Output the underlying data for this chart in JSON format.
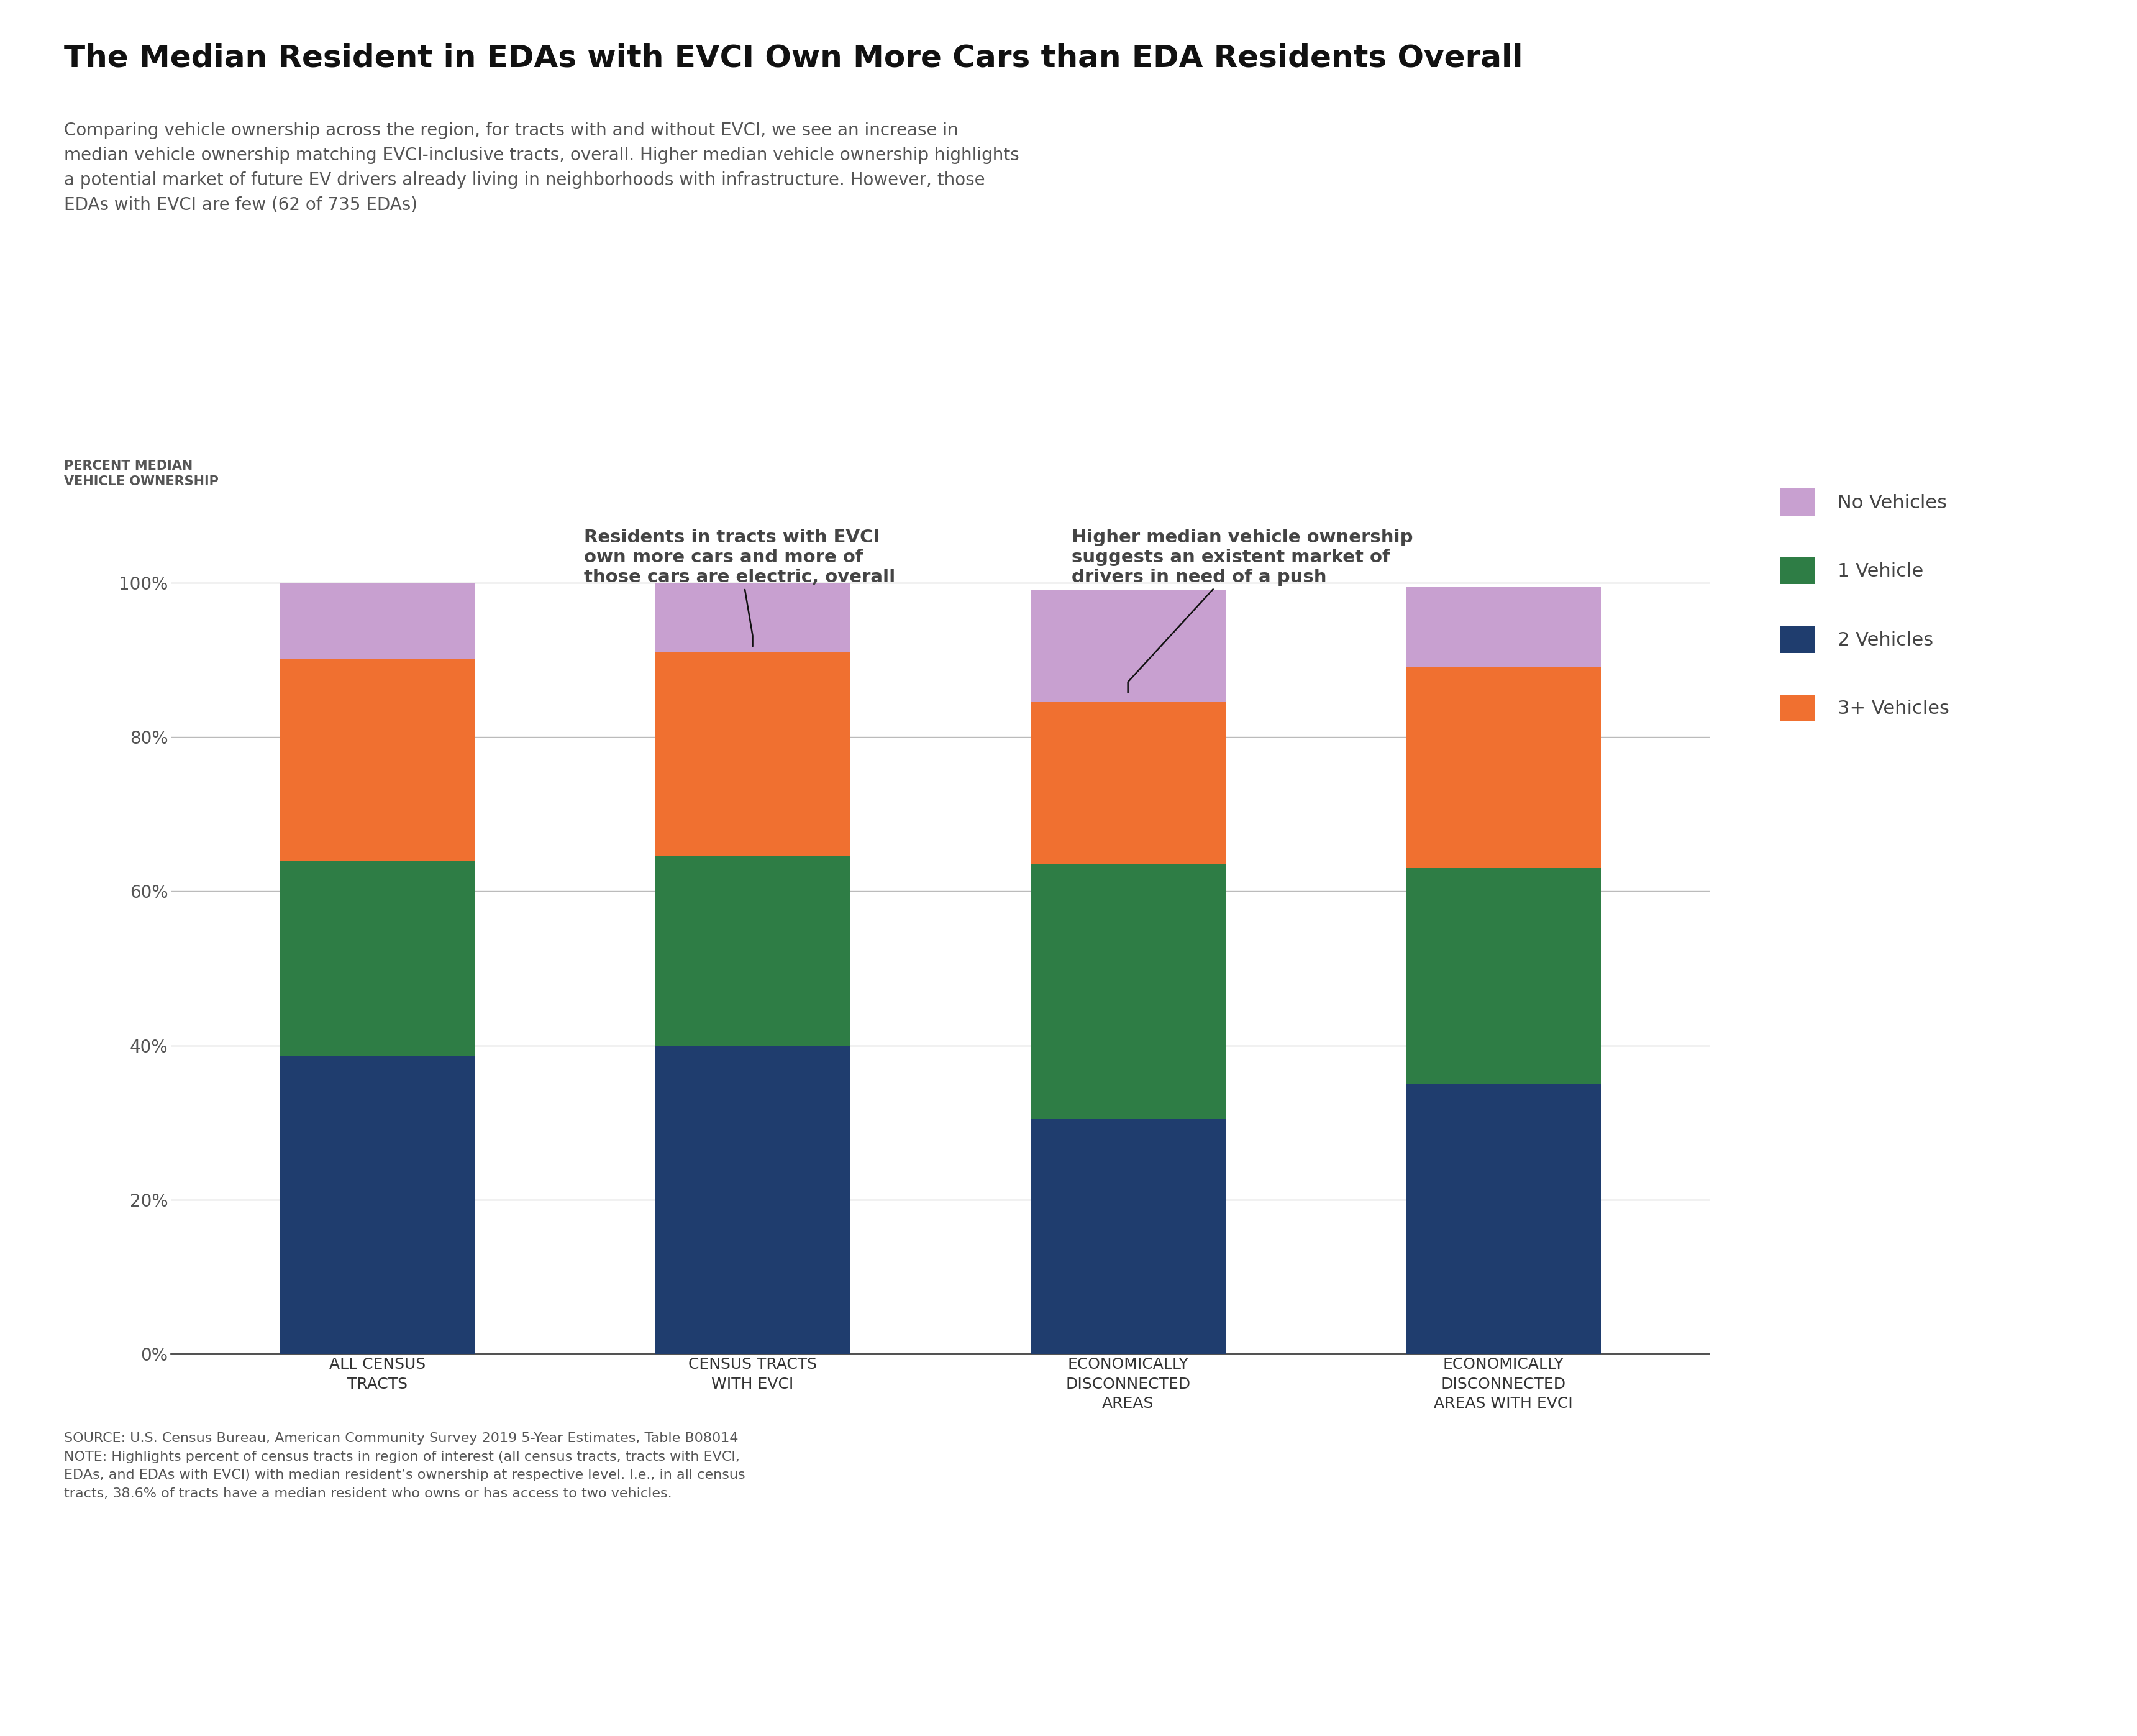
{
  "title": "The Median Resident in EDAs with EVCI Own More Cars than EDA Residents Overall",
  "subtitle": "Comparing vehicle ownership across the region, for tracts with and without EVCI, we see an increase in\nmedian vehicle ownership matching EVCI-inclusive tracts, overall. Higher median vehicle ownership highlights\na potential market of future EV drivers already living in neighborhoods with infrastructure. However, those\nEDAs with EVCI are few (62 of 735 EDAs)",
  "ylabel": "PERCENT MEDIAN\nVEHICLE OWNERSHIP",
  "categories": [
    "ALL CENSUS\nTRACTS",
    "CENSUS TRACTS\nWITH EVCI",
    "ECONOMICALLY\nDISCONNECTED\nAREAS",
    "ECONOMICALLY\nDISCONNECTED\nAREAS WITH EVCI"
  ],
  "data": {
    "2_vehicles": [
      38.6,
      40.0,
      30.5,
      35.0
    ],
    "1_vehicle": [
      25.4,
      24.5,
      33.0,
      28.0
    ],
    "3plus_vehicles": [
      26.1,
      26.5,
      21.0,
      26.0
    ],
    "no_vehicles": [
      9.9,
      9.0,
      14.5,
      10.5
    ]
  },
  "colors": {
    "2_vehicles": "#1f3d6e",
    "1_vehicle": "#2e7d45",
    "3plus_vehicles": "#f07030",
    "no_vehicles": "#c8a0d0"
  },
  "legend_labels": [
    "No Vehicles",
    "1 Vehicle",
    "2 Vehicles",
    "3+ Vehicles"
  ],
  "legend_colors": [
    "#c8a0d0",
    "#2e7d45",
    "#1f3d6e",
    "#f07030"
  ],
  "annotation1_text": "Residents in tracts with EVCI\nown more cars and more of\nthose cars are electric, overall",
  "annotation2_text": "Higher median vehicle ownership\nsuggests an existent market of\ndrivers in need of a push",
  "source_text": "SOURCE: U.S. Census Bureau, American Community Survey 2019 5-Year Estimates, Table B08014\nNOTE: Highlights percent of census tracts in region of interest (all census tracts, tracts with EVCI,\nEDAs, and EDAs with EVCI) with median resident’s ownership at respective level. I.e., in all census\ntracts, 38.6% of tracts have a median resident who owns or has access to two vehicles.",
  "background_color": "#ffffff",
  "title_fontsize": 36,
  "subtitle_fontsize": 20,
  "ylabel_fontsize": 15,
  "ytick_fontsize": 20,
  "xtick_fontsize": 18,
  "annotation_fontsize": 21,
  "legend_fontsize": 22,
  "source_fontsize": 16
}
